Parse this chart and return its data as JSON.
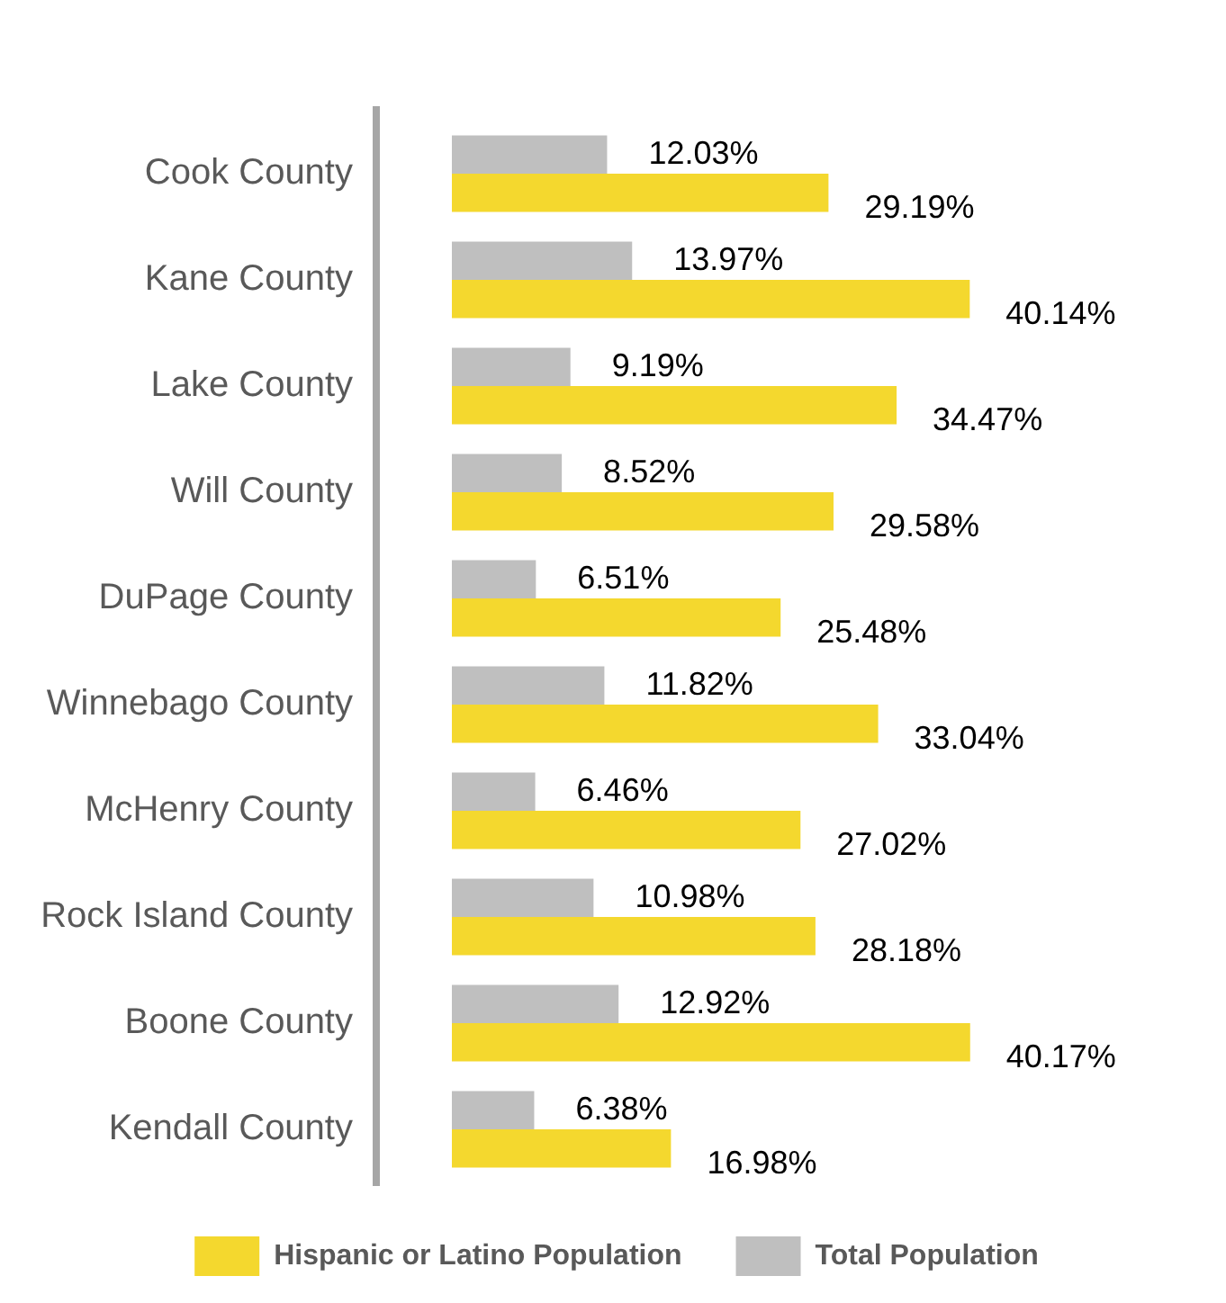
{
  "chart_data": {
    "type": "bar",
    "orientation": "horizontal",
    "legend": "bottom",
    "categories": [
      "Cook County",
      "Kane County",
      "Lake County",
      "Will County",
      "DuPage County",
      "Winnebago County",
      "McHenry County",
      "Rock Island County",
      "Boone County",
      "Kendall County"
    ],
    "series": [
      {
        "name": "Total Population",
        "color": "#bfbfbf",
        "values": [
          12.03,
          13.97,
          9.19,
          8.52,
          6.51,
          11.82,
          6.46,
          10.98,
          12.92,
          6.38
        ],
        "value_labels": [
          "12.03%",
          "13.97%",
          "9.19%",
          "8.52%",
          "6.51%",
          "11.82%",
          "6.46%",
          "10.98%",
          "12.92%",
          "6.38%"
        ]
      },
      {
        "name": "Hispanic or Latino Population",
        "color": "#f4d82e",
        "values": [
          29.19,
          40.14,
          34.47,
          29.58,
          25.48,
          33.04,
          27.02,
          28.18,
          40.17,
          16.98
        ],
        "value_labels": [
          "29.19%",
          "40.14%",
          "34.47%",
          "29.58%",
          "25.48%",
          "33.04%",
          "27.02%",
          "28.18%",
          "40.17%",
          "16.98%"
        ]
      }
    ]
  }
}
